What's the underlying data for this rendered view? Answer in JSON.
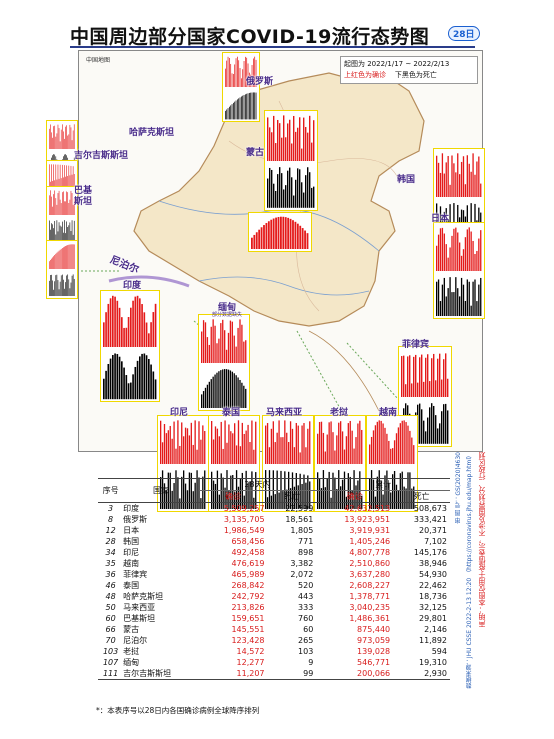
{
  "title": "中国周边部分国家COVID-19流行态势图",
  "title_tag": "28日",
  "map_label": "中国地图",
  "legend": {
    "period": "起图为 2022/1/17 ~ 2022/2/13",
    "line2_red": "上红色为确诊",
    "line2_black": "下黑色为死亡",
    "confirmed_color": "#e41a1a",
    "death_color": "#000000"
  },
  "chart_labels": {
    "russia": "俄罗斯",
    "kazakhstan": "哈萨克斯坦",
    "mongolia": "蒙古",
    "kyrgyzstan": "吉尔吉斯斯坦",
    "korea": "韩国",
    "pakistan": "巴基斯坦",
    "japan": "日本",
    "nepal": "尼泊尔",
    "india": "印度",
    "myanmar": "缅甸",
    "myanmar_note": "部分数据缺失",
    "philippines": "菲律宾",
    "indonesia": "印尼",
    "thailand": "泰国",
    "malaysia": "马来西亚",
    "laos": "老挝",
    "vietnam": "越南"
  },
  "table": {
    "col_rank": "序号",
    "col_country": "国家",
    "group_28": "28天内",
    "group_total": "累计",
    "sub_confirmed": "确诊",
    "sub_death": "死亡",
    "rows": [
      {
        "rank": "3",
        "country": "印度",
        "c28": "5,509,257",
        "d28": "22,599",
        "ct": "42,632,513",
        "dt": "508,673"
      },
      {
        "rank": "8",
        "country": "俄罗斯",
        "c28": "3,135,705",
        "d28": "18,561",
        "ct": "13,923,951",
        "dt": "333,421"
      },
      {
        "rank": "12",
        "country": "日本",
        "c28": "1,986,549",
        "d28": "1,805",
        "ct": "3,919,931",
        "dt": "20,371"
      },
      {
        "rank": "28",
        "country": "韩国",
        "c28": "658,456",
        "d28": "771",
        "ct": "1,405,246",
        "dt": "7,102"
      },
      {
        "rank": "34",
        "country": "印尼",
        "c28": "492,458",
        "d28": "898",
        "ct": "4,807,778",
        "dt": "145,176"
      },
      {
        "rank": "35",
        "country": "越南",
        "c28": "476,619",
        "d28": "3,382",
        "ct": "2,510,860",
        "dt": "38,946"
      },
      {
        "rank": "36",
        "country": "菲律宾",
        "c28": "465,989",
        "d28": "2,072",
        "ct": "3,637,280",
        "dt": "54,930"
      },
      {
        "rank": "46",
        "country": "泰国",
        "c28": "268,842",
        "d28": "520",
        "ct": "2,608,227",
        "dt": "22,462"
      },
      {
        "rank": "48",
        "country": "哈萨克斯坦",
        "c28": "242,792",
        "d28": "443",
        "ct": "1,378,771",
        "dt": "18,736"
      },
      {
        "rank": "50",
        "country": "马来西亚",
        "c28": "213,826",
        "d28": "333",
        "ct": "3,040,235",
        "dt": "32,125"
      },
      {
        "rank": "60",
        "country": "巴基斯坦",
        "c28": "159,651",
        "d28": "760",
        "ct": "1,486,361",
        "dt": "29,801"
      },
      {
        "rank": "66",
        "country": "蒙古",
        "c28": "145,551",
        "d28": "60",
        "ct": "875,440",
        "dt": "2,146"
      },
      {
        "rank": "70",
        "country": "尼泊尔",
        "c28": "123,428",
        "d28": "265",
        "ct": "973,059",
        "dt": "11,892"
      },
      {
        "rank": "103",
        "country": "老挝",
        "c28": "14,572",
        "d28": "103",
        "ct": "139,028",
        "dt": "594"
      },
      {
        "rank": "107",
        "country": "缅甸",
        "c28": "12,277",
        "d28": "9",
        "ct": "546,771",
        "dt": "19,310"
      },
      {
        "rank": "111",
        "country": "吉尔吉斯斯坦",
        "c28": "11,207",
        "d28": "99",
        "ct": "200,066",
        "dt": "2,930"
      }
    ]
  },
  "footnote": "*：本表序号以28日内各国确诊病例全球降序排列",
  "side_text": {
    "line1": "声明：本图仅用于疫情表示，不涉及国界划分、行政区划",
    "line2": "数据来源：JHU CSSE 2022-2-13 12:20 （https://coronavirus.jhu.edu/map.html）",
    "line3": "审 图 号：GS(2020)4630"
  }
}
